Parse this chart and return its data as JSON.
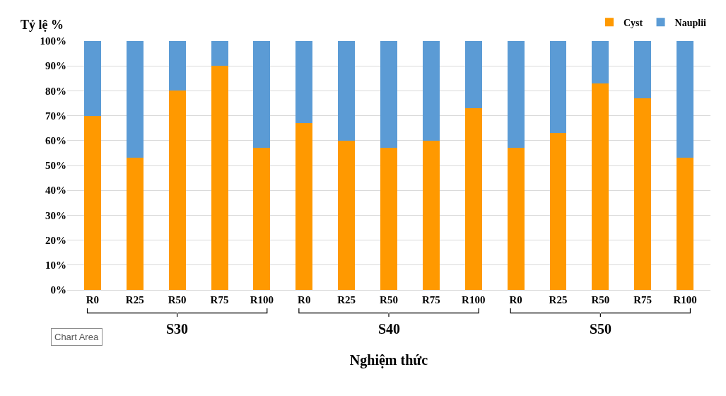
{
  "chart_data": {
    "type": "bar",
    "stacked": true,
    "ylabel": "Tỷ lệ %",
    "xlabel": "Nghiệm thức",
    "categories": [
      "R0",
      "R25",
      "R50",
      "R75",
      "R100",
      "R0",
      "R25",
      "R50",
      "R75",
      "R100",
      "R0",
      "R25",
      "R50",
      "R75",
      "R100"
    ],
    "series": [
      {
        "name": "Cyst",
        "color": "#ff9900",
        "values": [
          70,
          53,
          80,
          90,
          57,
          67,
          60,
          57,
          60,
          73,
          57,
          63,
          83,
          77,
          53
        ]
      },
      {
        "name": "Nauplii",
        "color": "#5b9bd5",
        "values": [
          30,
          47,
          20,
          10,
          43,
          33,
          40,
          43,
          40,
          27,
          43,
          37,
          17,
          23,
          47
        ]
      }
    ],
    "ylim": [
      0,
      100
    ],
    "yticks": [
      {
        "value": 0,
        "label": "0%"
      },
      {
        "value": 10,
        "label": "10%"
      },
      {
        "value": 20,
        "label": "20%"
      },
      {
        "value": 30,
        "label": "30%"
      },
      {
        "value": 40,
        "label": "40%"
      },
      {
        "value": 50,
        "label": "50%"
      },
      {
        "value": 60,
        "label": "60%"
      },
      {
        "value": 70,
        "label": "70%"
      },
      {
        "value": 80,
        "label": "80%"
      },
      {
        "value": 90,
        "label": "90%"
      },
      {
        "value": 100,
        "label": "100%"
      }
    ],
    "grid": "y",
    "legend": "top right",
    "annotations": [
      "S30",
      "S40",
      "S50",
      "Chart Area"
    ]
  }
}
